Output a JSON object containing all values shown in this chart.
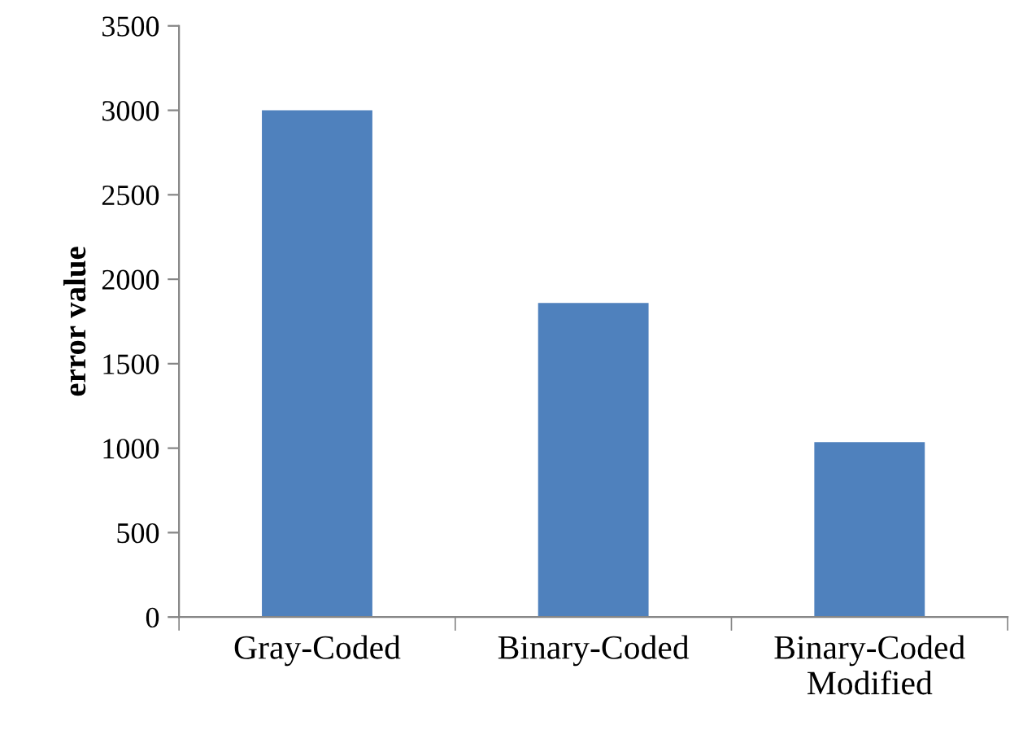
{
  "chart_data": {
    "type": "bar",
    "ylabel": "error value",
    "categories": [
      "Gray-Coded",
      "Binary-Coded",
      "Binary-Coded\nModified"
    ],
    "values": [
      3000,
      1860,
      1035
    ],
    "color": "#4f81bd",
    "ylim": [
      0,
      3500
    ],
    "yticks": [
      0,
      500,
      1000,
      1500,
      2000,
      2500,
      3000,
      3500
    ],
    "grid": false,
    "legend": false
  }
}
